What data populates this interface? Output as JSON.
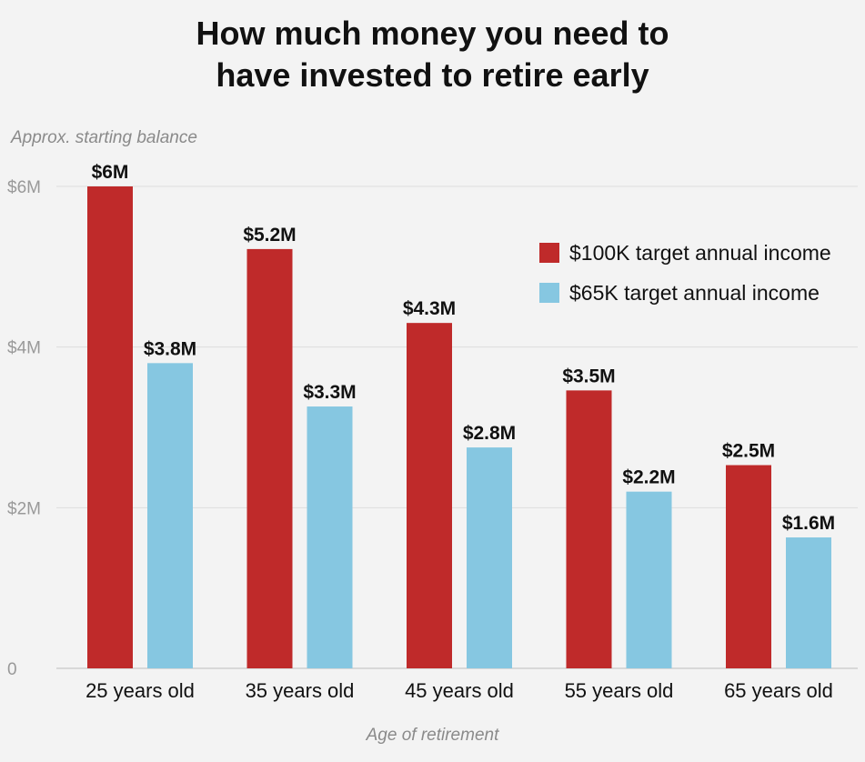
{
  "chart_data": {
    "type": "bar",
    "title_lines": [
      "How much money you need to",
      "have invested to retire early"
    ],
    "ylabel": "Approx. starting balance",
    "xlabel": "Age of retirement",
    "categories": [
      "25 years old",
      "35 years old",
      "45 years old",
      "55 years old",
      "65 years old"
    ],
    "ylim": [
      0,
      6
    ],
    "yticks": [
      {
        "value": 0,
        "label": "0"
      },
      {
        "value": 2,
        "label": "$2M"
      },
      {
        "value": 4,
        "label": "$4M"
      },
      {
        "value": 6,
        "label": "$6M"
      }
    ],
    "grid": true,
    "legend_position": "top-right",
    "series": [
      {
        "name": "$100K target annual income",
        "color": "#bf2a2a",
        "values": [
          6.0,
          5.22,
          4.3,
          3.46,
          2.53
        ],
        "labels": [
          "$6M",
          "$5.2M",
          "$4.3M",
          "$3.5M",
          "$2.5M"
        ]
      },
      {
        "name": "$65K target annual income",
        "color": "#86c7e1",
        "values": [
          3.8,
          3.26,
          2.75,
          2.2,
          1.63
        ],
        "labels": [
          "$3.8M",
          "$3.3M",
          "$2.8M",
          "$2.2M",
          "$1.6M"
        ]
      }
    ]
  }
}
